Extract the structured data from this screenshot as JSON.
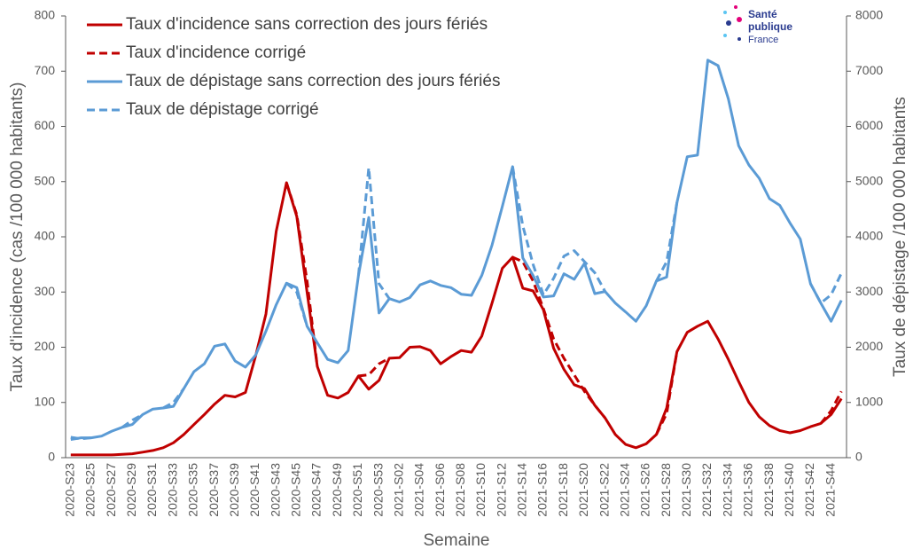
{
  "chart_data": {
    "type": "line",
    "y_label": "Taux d'incidence  (cas /100 000 habitants)",
    "y2_label": "Taux de dépistage /100 000 habitants",
    "x_label": "Semaine",
    "logo": [
      "Santé",
      "publique",
      "France"
    ],
    "categories": [
      "2020-S23",
      null,
      "2020-S25",
      null,
      "2020-S27",
      null,
      "2020-S29",
      null,
      "2020-S31",
      null,
      "2020-S33",
      null,
      "2020-S35",
      null,
      "2020-S37",
      null,
      "2020-S39",
      null,
      "2020-S41",
      null,
      "2020-S43",
      null,
      "2020-S45",
      null,
      "2020-S47",
      null,
      "2020-S49",
      null,
      "2020-S51",
      null,
      "2020-S53",
      null,
      "2021-S02",
      null,
      "2021-S04",
      null,
      "2021-S06",
      null,
      "2021-S08",
      null,
      "2021-S10",
      null,
      "2021-S12",
      null,
      "2021-S14",
      null,
      "2021-S16",
      null,
      "2021-S18",
      null,
      "2021-S20",
      null,
      "2021-S22",
      null,
      "2021-S24",
      null,
      "2021-S26",
      null,
      "2021-S28",
      null,
      "2021-S30",
      null,
      "2021-S32",
      null,
      "2021-S34",
      null,
      "2021-S36",
      null,
      "2021-S38",
      null,
      "2021-S40",
      null,
      "2021-S42",
      null,
      "2021-S44",
      null
    ],
    "ylim": [
      0,
      800
    ],
    "yticks": [
      0,
      100,
      200,
      300,
      400,
      500,
      600,
      700,
      800
    ],
    "y2lim": [
      0,
      8000
    ],
    "y2ticks": [
      0,
      1000,
      2000,
      3000,
      4000,
      5000,
      6000,
      7000,
      8000
    ],
    "series": [
      {
        "name": "Taux d'incidence sans correction des jours fériés",
        "color": "#c00000",
        "line_style": "solid",
        "values": [
          5,
          5,
          5,
          5,
          5,
          6,
          7,
          10,
          13,
          18,
          27,
          42,
          60,
          78,
          97,
          113,
          110,
          118,
          185,
          260,
          410,
          498,
          437,
          300,
          165,
          113,
          108,
          118,
          148,
          124,
          140,
          180,
          181,
          200,
          201,
          194,
          170,
          183,
          194,
          191,
          220,
          280,
          343,
          363,
          307,
          302,
          268,
          198,
          160,
          132,
          125,
          95,
          72,
          42,
          24,
          18,
          25,
          42,
          90,
          192,
          227,
          238,
          247,
          215,
          178,
          138,
          100,
          74,
          58,
          49,
          45,
          49,
          56,
          62,
          78,
          107
        ]
      },
      {
        "name": "Taux d'incidence corrigé",
        "color": "#c00000",
        "line_style": "dashed",
        "values": [
          null,
          null,
          null,
          null,
          null,
          null,
          null,
          null,
          null,
          null,
          null,
          null,
          null,
          null,
          null,
          null,
          null,
          null,
          null,
          null,
          null,
          498,
          440,
          320,
          165,
          null,
          null,
          null,
          148,
          150,
          170,
          180,
          null,
          null,
          null,
          null,
          null,
          null,
          null,
          null,
          null,
          null,
          null,
          363,
          355,
          320,
          270,
          215,
          180,
          150,
          120,
          95,
          72,
          null,
          null,
          null,
          null,
          42,
          80,
          192,
          null,
          null,
          null,
          null,
          null,
          null,
          null,
          null,
          null,
          null,
          null,
          null,
          null,
          62,
          85,
          120
        ]
      },
      {
        "name": "Taux de dépistage sans correction des jours fériés",
        "color": "#5b9bd5",
        "line_style": "solid",
        "axis": "y2",
        "values": [
          330,
          360,
          360,
          390,
          480,
          550,
          600,
          780,
          880,
          900,
          930,
          1250,
          1560,
          1700,
          2020,
          2060,
          1750,
          1640,
          1860,
          2290,
          2770,
          3160,
          3080,
          2380,
          2080,
          1780,
          1720,
          1940,
          3300,
          4350,
          2620,
          2880,
          2820,
          2900,
          3130,
          3200,
          3120,
          3080,
          2960,
          2940,
          3300,
          3850,
          4550,
          5270,
          3620,
          3300,
          2910,
          2930,
          3330,
          3230,
          3520,
          2970,
          3010,
          2800,
          2640,
          2470,
          2750,
          3200,
          3270,
          4620,
          5450,
          5480,
          7200,
          7100,
          6500,
          5650,
          5300,
          5060,
          4690,
          4570,
          4250,
          3960,
          3150,
          2800,
          2470,
          2850
        ]
      },
      {
        "name": "Taux de dépistage corrigé",
        "color": "#5b9bd5",
        "line_style": "dashed",
        "axis": "y2",
        "values": [
          370,
          340,
          360,
          null,
          null,
          550,
          680,
          780,
          null,
          900,
          1000,
          1250,
          null,
          null,
          null,
          null,
          null,
          null,
          null,
          null,
          null,
          3160,
          3000,
          2380,
          null,
          null,
          null,
          null,
          3300,
          5250,
          3150,
          2880,
          null,
          null,
          null,
          null,
          null,
          null,
          null,
          null,
          null,
          null,
          null,
          5270,
          4200,
          3500,
          2950,
          3250,
          3650,
          3750,
          3550,
          3350,
          3010,
          null,
          null,
          null,
          null,
          3200,
          3550,
          4620,
          null,
          null,
          null,
          null,
          null,
          null,
          null,
          null,
          null,
          null,
          null,
          null,
          3150,
          2800,
          2950,
          3340
        ]
      }
    ]
  }
}
